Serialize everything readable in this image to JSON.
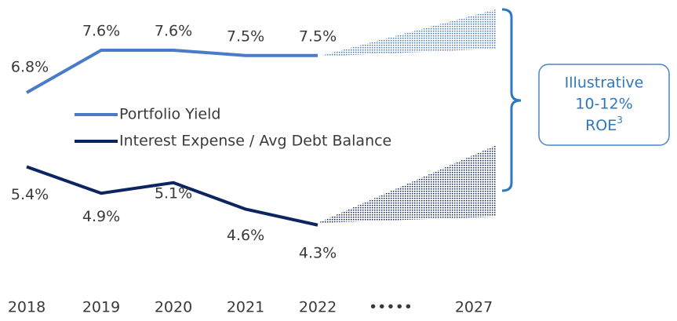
{
  "chart_data": {
    "type": "line",
    "categories": [
      "2018",
      "2019",
      "2020",
      "2021",
      "2022",
      "•••••",
      "2027"
    ],
    "series": [
      {
        "name": "Portfolio Yield",
        "color": "#4a7bc8",
        "values": [
          6.8,
          7.6,
          7.6,
          7.5,
          7.5,
          null,
          null
        ],
        "value_labels": [
          "6.8%",
          "7.6%",
          "7.6%",
          "7.5%",
          "7.5%",
          null,
          null
        ]
      },
      {
        "name": "Interest Expense / Avg Debt Balance",
        "color": "#0d2463",
        "values": [
          5.4,
          4.9,
          5.1,
          4.6,
          4.3,
          null,
          null
        ],
        "value_labels": [
          "5.4%",
          "4.9%",
          "5.1%",
          "4.6%",
          "4.3%",
          null,
          null
        ]
      }
    ],
    "ylim": [
      3.4,
      8.4
    ],
    "annotation": {
      "lines": [
        "Illustrative",
        "10-12%"
      ],
      "last": "ROE",
      "sup": "3"
    }
  }
}
